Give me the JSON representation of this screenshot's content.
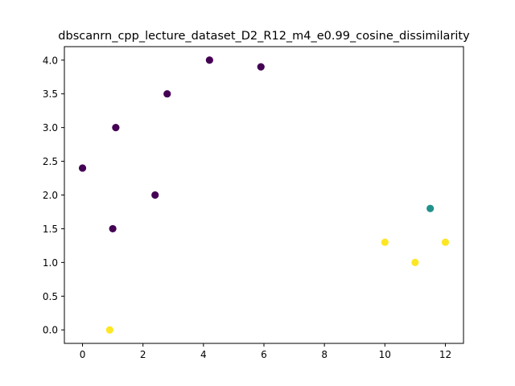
{
  "chart_data": {
    "type": "scatter",
    "title": "dbscanrn_cpp_lecture_dataset_D2_R12_m4_e0.99_cosine_dissimilarity",
    "xlabel": "",
    "ylabel": "",
    "xlim": [
      -0.6,
      12.6
    ],
    "ylim": [
      -0.2,
      4.2
    ],
    "xticks": [
      0,
      2,
      4,
      6,
      8,
      10,
      12
    ],
    "yticks": [
      0.0,
      0.5,
      1.0,
      1.5,
      2.0,
      2.5,
      3.0,
      3.5,
      4.0
    ],
    "xtick_labels": [
      "0",
      "2",
      "4",
      "6",
      "8",
      "10",
      "12"
    ],
    "ytick_labels": [
      "0.0",
      "0.5",
      "1.0",
      "1.5",
      "2.0",
      "2.5",
      "3.0",
      "3.5",
      "4.0"
    ],
    "grid": false,
    "legend": null,
    "cluster_colors": [
      "#440154",
      "#21918c",
      "#fde725"
    ],
    "points": [
      {
        "x": 0.0,
        "y": 2.4,
        "cluster": 0
      },
      {
        "x": 1.1,
        "y": 3.0,
        "cluster": 0
      },
      {
        "x": 2.8,
        "y": 3.5,
        "cluster": 0
      },
      {
        "x": 4.2,
        "y": 4.0,
        "cluster": 0
      },
      {
        "x": 5.9,
        "y": 3.9,
        "cluster": 0
      },
      {
        "x": 2.4,
        "y": 2.0,
        "cluster": 0
      },
      {
        "x": 1.0,
        "y": 1.5,
        "cluster": 0
      },
      {
        "x": 11.5,
        "y": 1.8,
        "cluster": 1
      },
      {
        "x": 0.9,
        "y": 0.0,
        "cluster": 2
      },
      {
        "x": 10.0,
        "y": 1.3,
        "cluster": 2
      },
      {
        "x": 11.0,
        "y": 1.0,
        "cluster": 2
      },
      {
        "x": 12.0,
        "y": 1.3,
        "cluster": 2
      }
    ]
  }
}
